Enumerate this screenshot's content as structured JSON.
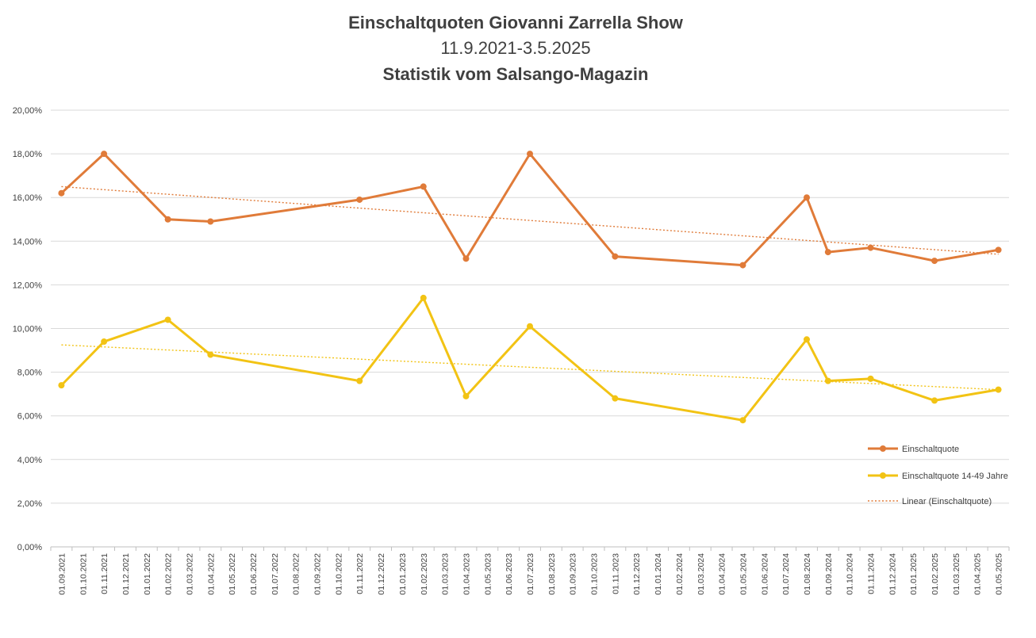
{
  "chart_data": {
    "type": "line",
    "title": "Einschaltquoten Giovanni Zarrella Show",
    "subtitle": "11.9.2021-3.5.2025",
    "subtitle2": "Statistik vom Salsango-Magazin",
    "ylim": [
      0,
      20
    ],
    "y_ticks": [
      0,
      2,
      4,
      6,
      8,
      10,
      12,
      14,
      16,
      18,
      20
    ],
    "y_tick_labels": [
      "0,00%",
      "2,00%",
      "4,00%",
      "6,00%",
      "8,00%",
      "10,00%",
      "12,00%",
      "14,00%",
      "16,00%",
      "18,00%",
      "20,00%"
    ],
    "x_tick_labels": [
      "01.09.2021",
      "01.10.2021",
      "01.11.2021",
      "01.12.2021",
      "01.01.2022",
      "01.02.2022",
      "01.03.2022",
      "01.04.2022",
      "01.05.2022",
      "01.06.2022",
      "01.07.2022",
      "01.08.2022",
      "01.09.2022",
      "01.10.2022",
      "01.11.2022",
      "01.12.2022",
      "01.01.2023",
      "01.02.2023",
      "01.03.2023",
      "01.04.2023",
      "01.05.2023",
      "01.06.2023",
      "01.07.2023",
      "01.08.2023",
      "01.09.2023",
      "01.10.2023",
      "01.11.2023",
      "01.12.2023",
      "01.01.2024",
      "01.02.2024",
      "01.03.2024",
      "01.04.2024",
      "01.05.2024",
      "01.06.2024",
      "01.07.2024",
      "01.08.2024",
      "01.09.2024",
      "01.10.2024",
      "01.11.2024",
      "01.12.2024",
      "01.01.2025",
      "01.02.2025",
      "01.03.2025",
      "01.04.2025",
      "01.05.2025"
    ],
    "grid": true,
    "legend_position": "right",
    "colors": {
      "quote": "#e07b39",
      "quote_14_49": "#f2c314",
      "trend": "#e07b39",
      "grid": "#d9d9d9",
      "axis": "#bfbfbf"
    },
    "series": [
      {
        "name": "Einschaltquote",
        "x": [
          "01.09.2021",
          "01.11.2021",
          "01.02.2022",
          "01.04.2022",
          "01.11.2022",
          "01.02.2023",
          "01.04.2023",
          "01.07.2023",
          "01.11.2023",
          "01.05.2024",
          "01.08.2024",
          "01.09.2024",
          "01.11.2024",
          "01.02.2025",
          "01.05.2025"
        ],
        "values": [
          16.2,
          18.0,
          15.0,
          14.9,
          15.9,
          16.5,
          13.2,
          18.0,
          13.3,
          12.9,
          16.0,
          13.5,
          13.7,
          13.1,
          13.6
        ]
      },
      {
        "name": "Einschaltquote 14-49 Jahre",
        "x": [
          "01.09.2021",
          "01.11.2021",
          "01.02.2022",
          "01.04.2022",
          "01.11.2022",
          "01.02.2023",
          "01.04.2023",
          "01.07.2023",
          "01.11.2023",
          "01.05.2024",
          "01.08.2024",
          "01.09.2024",
          "01.11.2024",
          "01.02.2025",
          "01.05.2025"
        ],
        "values": [
          7.4,
          9.4,
          10.4,
          8.8,
          7.6,
          11.4,
          6.9,
          10.1,
          6.8,
          5.8,
          9.5,
          7.6,
          7.7,
          6.7,
          7.2
        ]
      }
    ],
    "trendlines": [
      {
        "name": "Linear (Einschaltquote)",
        "x": [
          "01.09.2021",
          "01.05.2025"
        ],
        "values": [
          16.5,
          13.4
        ]
      },
      {
        "x": [
          "01.09.2021",
          "01.05.2025"
        ],
        "values": [
          9.25,
          7.2
        ]
      }
    ]
  }
}
